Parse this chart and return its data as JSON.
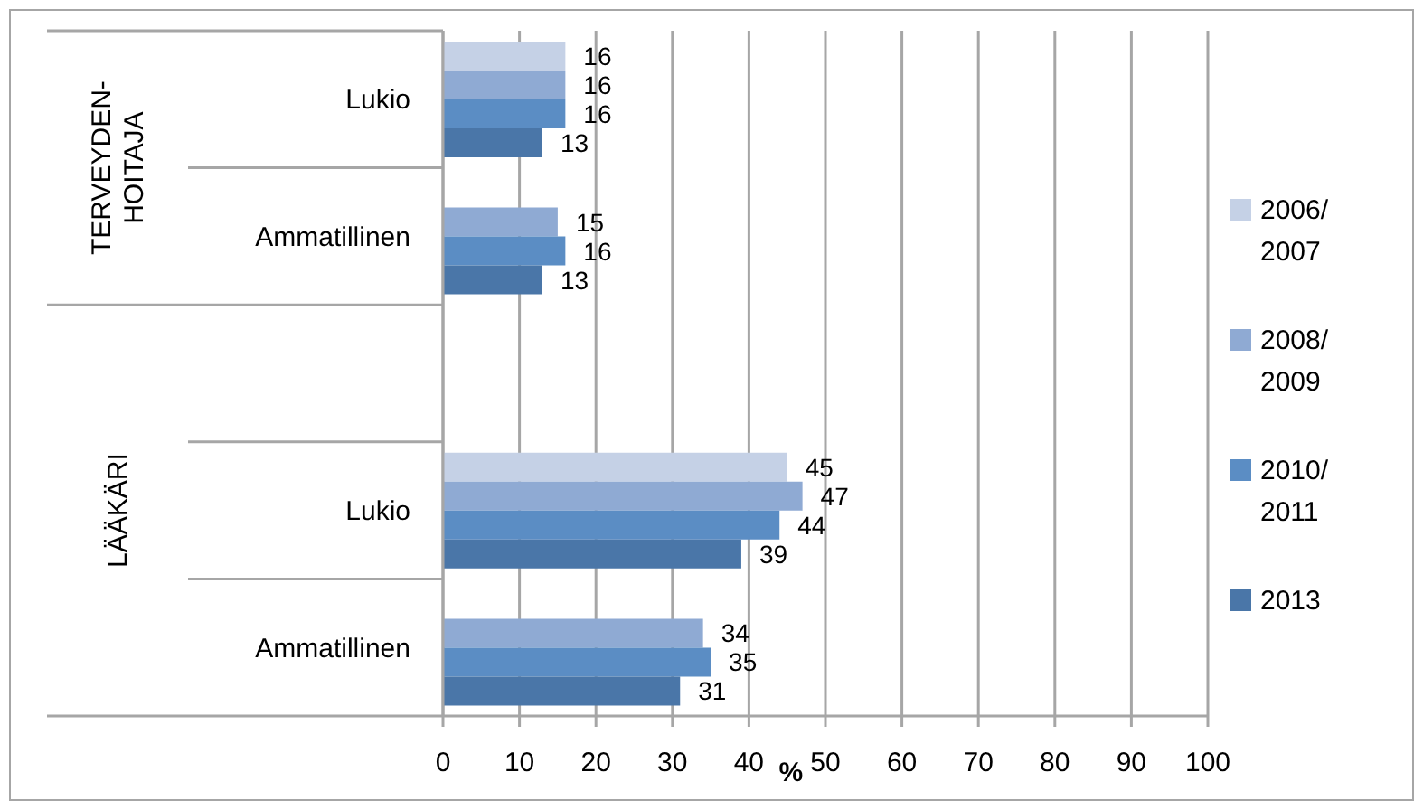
{
  "chart_data": {
    "type": "bar",
    "orientation": "horizontal",
    "categories": [
      "Lukio",
      "Ammatillinen",
      null,
      "Lukio",
      "Ammatillinen"
    ],
    "series": [
      {
        "name": "2006/2007",
        "color": "#c5d1e6",
        "values": [
          16,
          null,
          null,
          45,
          null
        ]
      },
      {
        "name": "2008/2009",
        "color": "#8faad3",
        "values": [
          16,
          15,
          null,
          47,
          34
        ]
      },
      {
        "name": "2010/2011",
        "color": "#5b8dc4",
        "values": [
          16,
          16,
          null,
          44,
          35
        ]
      },
      {
        "name": "2013",
        "color": "#4a76a8",
        "values": [
          13,
          13,
          null,
          39,
          31
        ]
      }
    ],
    "xlabel": "%",
    "xlim": [
      0,
      100
    ],
    "xticks": [
      0,
      10,
      20,
      30,
      40,
      50,
      60,
      70,
      80,
      90,
      100
    ],
    "annotations": [
      "TERVEYDEN-HOITAJA",
      "LÄÄKÄRI"
    ],
    "data_labels": true,
    "grid": "x",
    "legend": "right"
  }
}
